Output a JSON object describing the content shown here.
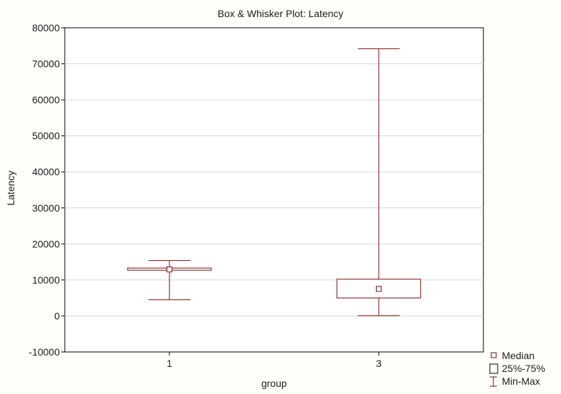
{
  "colors": {
    "background": "#fefefa",
    "plot_area": "#ffffff",
    "box_stroke": "#7a0a0a",
    "gridline": "#d6d6d6",
    "axis": "#000000"
  },
  "chart_data": {
    "type": "box",
    "title": "Box & Whisker Plot:  Latency",
    "xlabel": "group",
    "ylabel": "Latency",
    "ylim": [
      -10000,
      80000
    ],
    "yticks": [
      -10000,
      0,
      10000,
      20000,
      30000,
      40000,
      50000,
      60000,
      70000,
      80000
    ],
    "grid": true,
    "legend_position": "bottom-right",
    "categories": [
      "1",
      "3"
    ],
    "boxes": [
      {
        "category": "1",
        "min": 4500,
        "q1": 12700,
        "median": 12900,
        "q3": 13300,
        "max": 15400
      },
      {
        "category": "3",
        "min": 100,
        "q1": 5000,
        "median": 7500,
        "q3": 10200,
        "max": 74200
      }
    ],
    "legend": [
      "Median",
      "25%-75%",
      "Min-Max"
    ]
  }
}
